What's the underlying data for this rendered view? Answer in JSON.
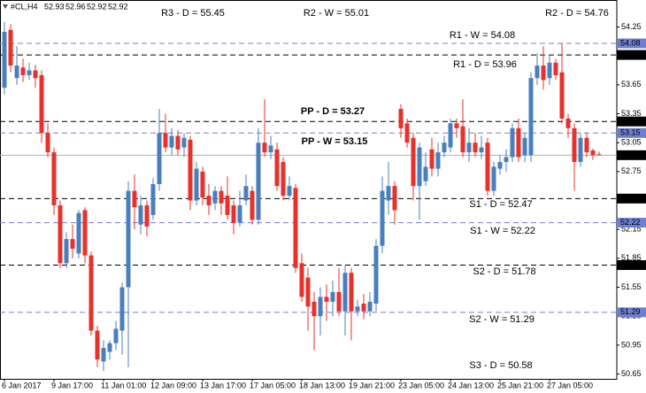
{
  "chart_data": {
    "type": "candlestick",
    "symbol": "#CL,H4",
    "up_color": "#4a7fbf",
    "down_color": "#e8312a",
    "ylim": [
      50.6,
      54.53
    ],
    "yticks": [
      54.25,
      53.65,
      53.35,
      53.05,
      52.75,
      52.15,
      51.85,
      51.55,
      51.25,
      50.95,
      50.65
    ],
    "categories": [
      "6 Jan 2017",
      null,
      null,
      null,
      null,
      null,
      null,
      null,
      "9 Jan 17:00",
      null,
      null,
      null,
      null,
      null,
      null,
      null,
      "11 Jan 01:00",
      null,
      null,
      null,
      null,
      null,
      null,
      null,
      "12 Jan 09:00",
      null,
      null,
      null,
      null,
      null,
      null,
      null,
      "13 Jan 17:00",
      null,
      null,
      null,
      null,
      null,
      null,
      null,
      "17 Jan 05:00",
      null,
      null,
      null,
      null,
      null,
      null,
      null,
      "18 Jan 13:00",
      null,
      null,
      null,
      null,
      null,
      null,
      null,
      "19 Jan 21:00",
      null,
      null,
      null,
      null,
      null,
      null,
      null,
      "23 Jan 05:00",
      null,
      null,
      null,
      null,
      null,
      null,
      null,
      "24 Jan 13:00",
      null,
      null,
      null,
      null,
      null,
      null,
      null,
      "25 Jan 21:00",
      null,
      null,
      null,
      null,
      null,
      null,
      null,
      "27 Jan 05:00",
      null,
      null,
      null,
      null,
      null,
      null,
      null,
      null
    ],
    "open": [
      53.62,
      54.22,
      53.72,
      53.83,
      53.75,
      53.8,
      53.75,
      53.15,
      52.95,
      52.4,
      51.8,
      52.05,
      51.9,
      52.35,
      51.88,
      51.1,
      50.78,
      50.88,
      50.97,
      51.1,
      51.55,
      52.55,
      52.2,
      52.4,
      52.3,
      52.62,
      53.15,
      53.0,
      53.12,
      53.0,
      53.08,
      52.45,
      52.75,
      52.5,
      52.42,
      52.55,
      52.5,
      52.4,
      52.22,
      52.45,
      52.55,
      52.25,
      53.05,
      52.95,
      52.98,
      52.85,
      52.5,
      52.58,
      51.8,
      51.65,
      51.4,
      51.25,
      51.45,
      51.4,
      51.5,
      51.3,
      51.7,
      51.3,
      51.38,
      51.3,
      51.38,
      51.98,
      52.45,
      52.6,
      53.4,
      53.25,
      53.1,
      52.6,
      52.65,
      52.98,
      52.78,
      52.95,
      53.0,
      53.25,
      53.22,
      52.95,
      53.05,
      52.95,
      53.05,
      52.55,
      52.78,
      52.85,
      52.9,
      53.2,
      52.92,
      52.92,
      53.72,
      53.85,
      53.72,
      53.88,
      53.78,
      53.3,
      53.2,
      52.85,
      53.1,
      52.97,
      52.93
    ],
    "high": [
      54.3,
      54.28,
      54.05,
      53.92,
      53.88,
      53.86,
      53.8,
      53.25,
      53.0,
      52.45,
      52.12,
      52.2,
      52.35,
      52.38,
      51.92,
      51.15,
      51.0,
      51.0,
      51.2,
      51.6,
      52.65,
      52.72,
      52.5,
      52.45,
      52.68,
      53.4,
      53.35,
      53.2,
      53.18,
      53.15,
      53.12,
      52.85,
      52.8,
      52.62,
      52.6,
      52.6,
      52.7,
      52.45,
      52.55,
      52.72,
      52.6,
      53.2,
      53.5,
      53.12,
      53.05,
      52.9,
      52.7,
      52.62,
      51.9,
      51.75,
      51.5,
      51.55,
      51.58,
      51.62,
      51.75,
      51.78,
      51.75,
      51.42,
      51.48,
      51.5,
      52.05,
      52.7,
      52.85,
      52.65,
      53.45,
      53.3,
      53.15,
      53.05,
      52.95,
      53.1,
      53.05,
      53.12,
      53.3,
      53.3,
      53.5,
      53.2,
      53.15,
      53.12,
      53.1,
      52.85,
      52.92,
      52.98,
      53.25,
      53.3,
      53.15,
      53.78,
      53.98,
      54.05,
      53.95,
      53.92,
      54.08,
      53.35,
      53.25,
      53.15,
      53.15,
      52.99,
      52.96
    ],
    "low": [
      53.55,
      53.78,
      53.65,
      53.68,
      53.7,
      53.62,
      53.05,
      52.9,
      52.3,
      51.75,
      51.75,
      51.85,
      51.85,
      51.8,
      51.05,
      50.72,
      50.68,
      50.8,
      50.9,
      50.85,
      50.72,
      52.15,
      52.1,
      52.08,
      52.25,
      52.55,
      52.95,
      52.92,
      52.92,
      52.9,
      52.35,
      52.4,
      52.4,
      52.3,
      52.35,
      52.3,
      52.25,
      52.1,
      52.18,
      52.4,
      52.2,
      52.2,
      52.9,
      52.88,
      52.55,
      52.45,
      52.45,
      51.7,
      51.4,
      51.1,
      50.9,
      51.05,
      51.2,
      51.25,
      51.25,
      51.05,
      51.0,
      51.25,
      51.22,
      51.25,
      51.3,
      51.9,
      52.3,
      52.2,
      53.1,
      53.0,
      52.45,
      52.25,
      52.6,
      52.7,
      52.7,
      52.9,
      52.95,
      53.1,
      52.9,
      52.85,
      52.9,
      52.88,
      52.5,
      52.5,
      52.72,
      52.75,
      52.85,
      52.85,
      52.85,
      52.85,
      53.65,
      53.6,
      53.65,
      53.7,
      53.25,
      53.1,
      52.55,
      52.8,
      52.9,
      52.87,
      52.92
    ],
    "close": [
      54.2,
      53.85,
      53.85,
      53.75,
      53.8,
      53.72,
      53.15,
      52.95,
      52.4,
      51.8,
      52.05,
      51.95,
      52.32,
      51.88,
      51.1,
      50.8,
      50.92,
      50.97,
      51.12,
      51.55,
      52.55,
      52.38,
      52.4,
      52.18,
      52.62,
      53.15,
      53.0,
      53.12,
      52.98,
      53.1,
      52.45,
      52.78,
      52.48,
      52.4,
      52.55,
      52.42,
      52.3,
      52.22,
      52.4,
      52.6,
      52.25,
      53.05,
      52.95,
      53.02,
      52.6,
      52.5,
      52.6,
      51.75,
      51.45,
      51.35,
      51.25,
      51.45,
      51.4,
      51.5,
      51.3,
      51.7,
      51.3,
      51.35,
      51.3,
      51.4,
      51.98,
      52.55,
      52.6,
      52.35,
      53.2,
      53.05,
      52.6,
      53.0,
      52.8,
      52.78,
      52.95,
      53.05,
      53.25,
      53.2,
      52.95,
      53.05,
      52.95,
      53.0,
      52.55,
      52.8,
      52.85,
      52.9,
      53.2,
      52.9,
      53.1,
      53.72,
      53.85,
      53.7,
      53.88,
      53.75,
      53.3,
      53.2,
      52.85,
      53.1,
      52.95,
      52.92,
      52.92
    ],
    "levels": [
      {
        "label": "R3 - D = 55.45",
        "value": 55.45,
        "color": "#000000",
        "text_color": "#e03a3a",
        "bold": false
      },
      {
        "label": "R2 - W = 55.01",
        "value": 55.01,
        "color": "#7b7bd8",
        "text_color": "#8e8ed8",
        "bold": false
      },
      {
        "label": "R2 - D = 54.76",
        "value": 54.76,
        "color": "#000000",
        "text_color": "#e03a3a",
        "bold": false
      },
      {
        "label": "R1 - W = 54.08",
        "value": 54.08,
        "color": "#7b7bd8",
        "text_color": "#8e8ed8",
        "bold": false
      },
      {
        "label": "R1 - D = 53.96",
        "value": 53.96,
        "color": "#000000",
        "text_color": "#e03a3a",
        "bold": false
      },
      {
        "label": "PP - D = 53.27",
        "value": 53.27,
        "color": "#000000",
        "text_color": "#3a6fd0",
        "bold": true
      },
      {
        "label": "PP - W = 53.15",
        "value": 53.15,
        "color": "#7b7bd8",
        "text_color": "#3a6fd0",
        "bold": true
      },
      {
        "label": "S1 - D = 52.47",
        "value": 52.47,
        "color": "#000000",
        "text_color": "#e03a3a",
        "bold": false
      },
      {
        "label": "S1 - W = 52.22",
        "value": 52.22,
        "color": "#7b7bd8",
        "text_color": "#8e8ed8",
        "bold": false
      },
      {
        "label": "S2 - D = 51.78",
        "value": 51.78,
        "color": "#000000",
        "text_color": "#e03a3a",
        "bold": false
      },
      {
        "label": "S2 - W = 51.29",
        "value": 51.29,
        "color": "#7b7bd8",
        "text_color": "#8e8ed8",
        "bold": false
      },
      {
        "label": "S3 - D = 50.58",
        "value": 50.58,
        "color": "#000000",
        "text_color": "#e03a3a",
        "bold": false
      }
    ]
  }
}
